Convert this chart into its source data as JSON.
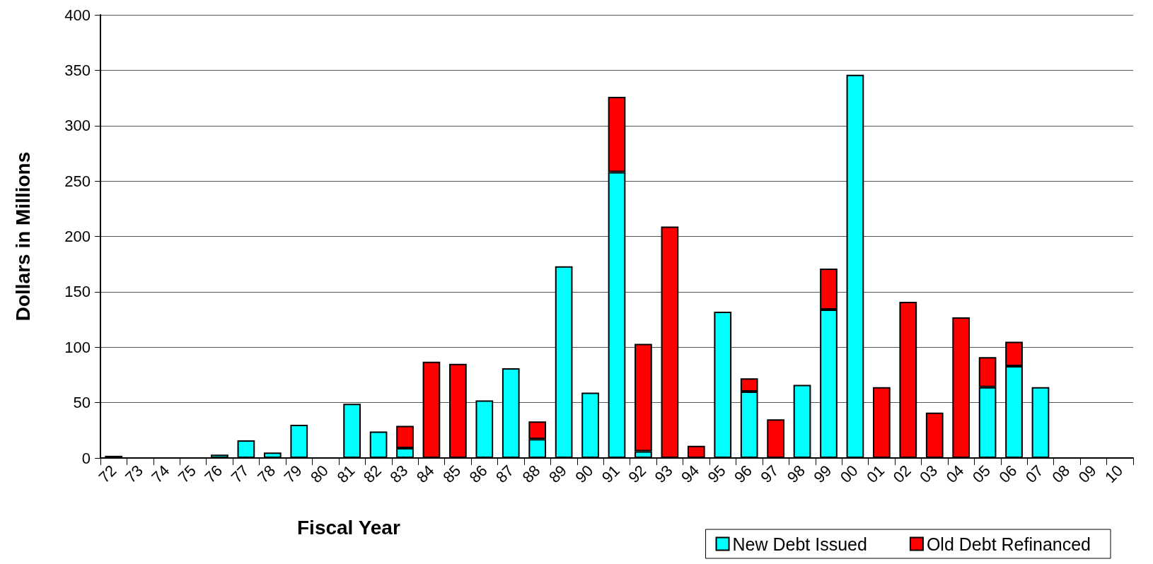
{
  "chart_data": {
    "type": "bar",
    "xlabel": "Fiscal Year",
    "ylabel": "Dollars in Millions",
    "categories": [
      "72",
      "73",
      "74",
      "75",
      "76",
      "77",
      "78",
      "79",
      "80",
      "81",
      "82",
      "83",
      "84",
      "85",
      "86",
      "87",
      "88",
      "89",
      "90",
      "91",
      "92",
      "93",
      "94",
      "95",
      "96",
      "97",
      "98",
      "99",
      "00",
      "01",
      "02",
      "03",
      "04",
      "05",
      "06",
      "07",
      "08",
      "09",
      "10"
    ],
    "series": [
      {
        "name": "New Debt Issued",
        "color": "#00ffff",
        "values": [
          2,
          null,
          null,
          null,
          3,
          16,
          5,
          30,
          null,
          49,
          24,
          9,
          null,
          null,
          52,
          81,
          17,
          173,
          59,
          258,
          6,
          null,
          null,
          132,
          60,
          null,
          66,
          134,
          346,
          null,
          null,
          null,
          null,
          64,
          83,
          64,
          null,
          null,
          null
        ]
      },
      {
        "name": "Old Debt Refinanced",
        "color": "#ff0000",
        "values": [
          null,
          null,
          null,
          null,
          null,
          null,
          null,
          null,
          null,
          null,
          null,
          20,
          87,
          85,
          null,
          null,
          16,
          null,
          null,
          68,
          97,
          209,
          11,
          null,
          12,
          35,
          null,
          37,
          null,
          64,
          141,
          41,
          127,
          27,
          22,
          null,
          null,
          null,
          null
        ]
      }
    ],
    "stacked": true,
    "ylim": [
      0,
      400
    ],
    "yticks": [
      0,
      50,
      100,
      150,
      200,
      250,
      300,
      350,
      400
    ],
    "grid": "y",
    "legend": "bottom right"
  }
}
